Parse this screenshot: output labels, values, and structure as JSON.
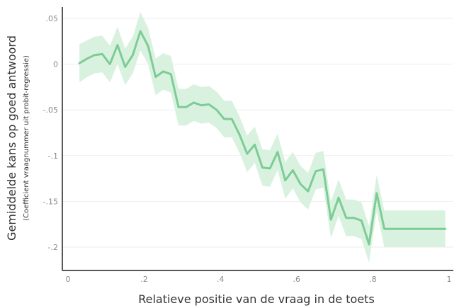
{
  "chart_data": {
    "type": "line",
    "title": "",
    "xlabel": "Relatieve positie van de vraag in de toets",
    "ylabel": "Gemiddelde kans op goed antwoord",
    "ylabel_sub": "(Coefficient vraagnummer uit probit-regressie)",
    "xlim": [
      0,
      1
    ],
    "ylim": [
      -0.2,
      0.05
    ],
    "xticks": [
      0,
      0.2,
      0.4,
      0.6,
      0.8,
      1
    ],
    "xtick_labels": [
      "0",
      ".2",
      ".4",
      ".6",
      ".8",
      "1"
    ],
    "yticks": [
      0.05,
      0,
      -0.05,
      -0.1,
      -0.15,
      -0.2
    ],
    "ytick_labels": [
      ".05",
      "0",
      "-.05",
      "-.1",
      "-.15",
      "-.2"
    ],
    "grid": true,
    "series": [
      {
        "color": "#7dcc95",
        "band_color": "#d9f2e0",
        "x": [
          0.03,
          0.05,
          0.07,
          0.09,
          0.11,
          0.13,
          0.15,
          0.17,
          0.19,
          0.21,
          0.23,
          0.25,
          0.27,
          0.29,
          0.31,
          0.33,
          0.35,
          0.37,
          0.39,
          0.41,
          0.43,
          0.45,
          0.47,
          0.49,
          0.51,
          0.53,
          0.55,
          0.57,
          0.59,
          0.61,
          0.63,
          0.65,
          0.67,
          0.69,
          0.71,
          0.73,
          0.75,
          0.77,
          0.79,
          0.81,
          0.83,
          0.85,
          0.87,
          0.89,
          0.91,
          0.93,
          0.95,
          0.97,
          0.99
        ],
        "y": [
          0.001,
          0.006,
          0.01,
          0.011,
          0.0,
          0.021,
          -0.003,
          0.01,
          0.036,
          0.02,
          -0.014,
          -0.008,
          -0.011,
          -0.047,
          -0.047,
          -0.042,
          -0.045,
          -0.044,
          -0.05,
          -0.06,
          -0.06,
          -0.077,
          -0.098,
          -0.088,
          -0.113,
          -0.114,
          -0.096,
          -0.127,
          -0.116,
          -0.131,
          -0.139,
          -0.117,
          -0.115,
          -0.17,
          -0.146,
          -0.168,
          -0.168,
          -0.171,
          -0.197,
          -0.141,
          -0.18,
          -0.18,
          -0.18,
          -0.18,
          -0.18,
          -0.18,
          -0.18,
          -0.18,
          -0.18
        ],
        "lower": [
          -0.02,
          -0.014,
          -0.01,
          -0.009,
          -0.02,
          0.0,
          -0.023,
          -0.01,
          0.015,
          0.0,
          -0.034,
          -0.028,
          -0.031,
          -0.067,
          -0.067,
          -0.062,
          -0.065,
          -0.064,
          -0.07,
          -0.08,
          -0.08,
          -0.097,
          -0.118,
          -0.108,
          -0.133,
          -0.134,
          -0.116,
          -0.147,
          -0.136,
          -0.151,
          -0.159,
          -0.137,
          -0.135,
          -0.19,
          -0.166,
          -0.188,
          -0.188,
          -0.191,
          -0.217,
          -0.161,
          -0.2,
          -0.2,
          -0.2,
          -0.2,
          -0.2,
          -0.2,
          -0.2,
          -0.2,
          -0.2
        ],
        "upper": [
          0.022,
          0.026,
          0.03,
          0.031,
          0.02,
          0.041,
          0.017,
          0.03,
          0.057,
          0.04,
          0.006,
          0.012,
          0.009,
          -0.027,
          -0.027,
          -0.022,
          -0.025,
          -0.024,
          -0.03,
          -0.04,
          -0.04,
          -0.057,
          -0.078,
          -0.068,
          -0.093,
          -0.094,
          -0.076,
          -0.107,
          -0.096,
          -0.111,
          -0.119,
          -0.097,
          -0.095,
          -0.15,
          -0.126,
          -0.148,
          -0.148,
          -0.151,
          -0.177,
          -0.121,
          -0.16,
          -0.16,
          -0.16,
          -0.16,
          -0.16,
          -0.16,
          -0.16,
          -0.16,
          -0.16
        ]
      }
    ]
  }
}
